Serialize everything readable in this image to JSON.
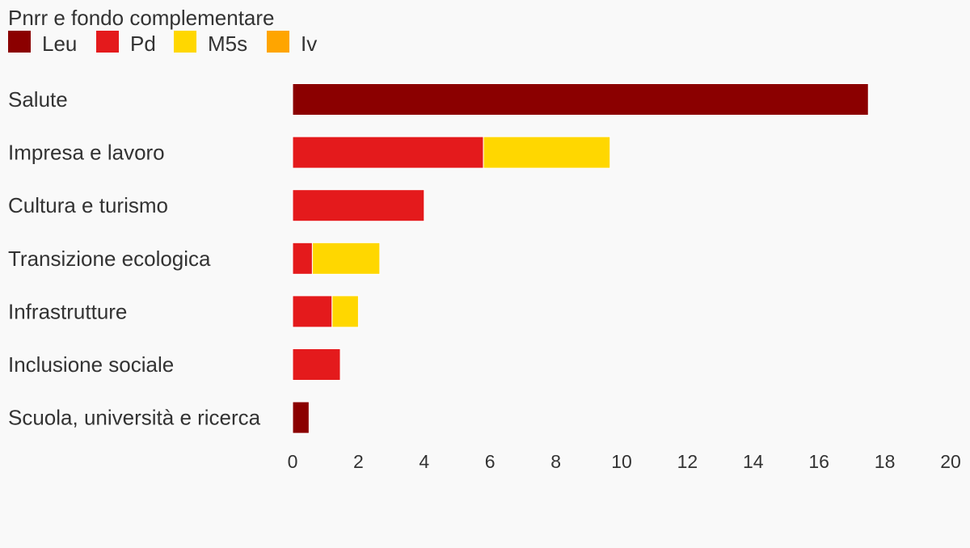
{
  "chart_data": {
    "type": "bar",
    "orientation": "horizontal",
    "stacked": true,
    "legend_title": "Pnrr e fondo complementare",
    "legend_position": "top-left",
    "categories": [
      "Salute",
      "Impresa e lavoro",
      "Cultura e turismo",
      "Transizione ecologica",
      "Infrastrutture",
      "Inclusione sociale",
      "Scuola, università e ricerca"
    ],
    "series": [
      {
        "name": "Leu",
        "color": "#8b0000",
        "values": [
          17.5,
          0,
          0,
          0,
          0,
          0,
          0.5
        ]
      },
      {
        "name": "Pd",
        "color": "#e41a1c",
        "values": [
          0,
          5.8,
          4.0,
          0.6,
          1.2,
          1.45,
          0
        ]
      },
      {
        "name": "M5s",
        "color": "#ffd700",
        "values": [
          0,
          3.85,
          0,
          2.05,
          0.8,
          0,
          0
        ]
      },
      {
        "name": "Iv",
        "color": "#ffa500",
        "values": [
          0,
          0,
          0,
          0,
          0,
          0,
          0
        ]
      }
    ],
    "xlim": [
      0,
      20
    ],
    "xticks": [
      "0",
      "2",
      "4",
      "6",
      "8",
      "10",
      "12",
      "14",
      "16",
      "18",
      "20"
    ],
    "grid": false
  }
}
